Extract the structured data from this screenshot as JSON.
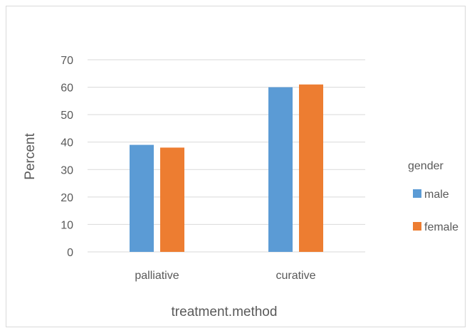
{
  "chart_data": {
    "type": "bar",
    "title": "",
    "xlabel": "treatment.method",
    "ylabel": "Percent",
    "categories": [
      "palliative",
      "curative"
    ],
    "series": [
      {
        "name": "male",
        "values": [
          39,
          60
        ]
      },
      {
        "name": "female",
        "values": [
          38,
          61
        ]
      }
    ],
    "ylim": [
      0,
      70
    ],
    "yticks": [
      0,
      10,
      20,
      30,
      40,
      50,
      60,
      70
    ],
    "grid": true,
    "legend": {
      "title": "gender",
      "placement": "right"
    },
    "colors": {
      "male": "#5b9bd5",
      "female": "#ed7d31",
      "grid": "#d9d9d9",
      "text": "#595959"
    }
  }
}
